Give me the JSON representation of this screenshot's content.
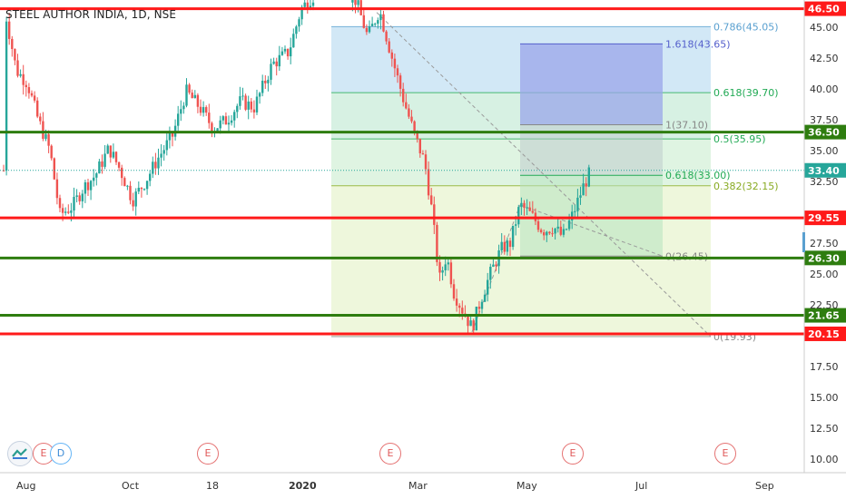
{
  "header": {
    "title": "STEEL AUTHOR INDIA, 1D, NSE"
  },
  "chart_data": {
    "type": "candlestick",
    "symbol": "STEEL AUTHOR INDIA",
    "interval": "1D",
    "exchange": "NSE",
    "last_price": "33.40",
    "price_axis": {
      "ticks": [
        "45.00",
        "42.50",
        "40.00",
        "37.50",
        "35.00",
        "32.50",
        "27.50",
        "25.00",
        "22.50",
        "17.50",
        "15.00",
        "12.50",
        "10.00"
      ],
      "ylim": [
        9.5,
        47.5
      ]
    },
    "time_axis": {
      "ticks": [
        "Aug",
        "Oct",
        "18",
        "2020",
        "Mar",
        "May",
        "Jul",
        "Sep"
      ]
    },
    "levels": [
      {
        "price": 46.5,
        "label": "46.50",
        "color": "#ff1a1a"
      },
      {
        "price": 36.5,
        "label": "36.50",
        "color": "#2e7d0f"
      },
      {
        "price": 29.55,
        "label": "29.55",
        "color": "#ff1a1a"
      },
      {
        "price": 26.3,
        "label": "26.30",
        "color": "#2e7d0f"
      },
      {
        "price": 21.65,
        "label": "21.65",
        "color": "#2e7d0f"
      },
      {
        "price": 20.15,
        "label": "20.15",
        "color": "#ff1a1a"
      }
    ],
    "fib_retracement_1": [
      {
        "label": "0.786(45.05)",
        "price": 45.05,
        "color": "#5aa0d0"
      },
      {
        "label": "0.618(39.70)",
        "price": 39.7,
        "color": "#22aa55"
      },
      {
        "label": "0.5(35.95)",
        "price": 35.95,
        "color": "#22aa55"
      },
      {
        "label": "0.382(32.15)",
        "price": 32.15,
        "color": "#88aa22"
      },
      {
        "label": "0(19.93)",
        "price": 19.93,
        "color": "#888888"
      }
    ],
    "fib_extension_2": [
      {
        "label": "1.618(43.65)",
        "price": 43.65,
        "color": "#5560cc"
      },
      {
        "label": "1(37.10)",
        "price": 37.1,
        "color": "#888888"
      },
      {
        "label": "0.618(33.00)",
        "price": 33.0,
        "color": "#22aa55"
      },
      {
        "label": "0(26.45)",
        "price": 26.45,
        "color": "#888888"
      }
    ],
    "events": [
      "E",
      "D",
      "E",
      "E",
      "E",
      "E"
    ],
    "colors": {
      "up": "#26a69a",
      "down": "#ef5350",
      "last_price_bg": "#26a69a"
    }
  }
}
